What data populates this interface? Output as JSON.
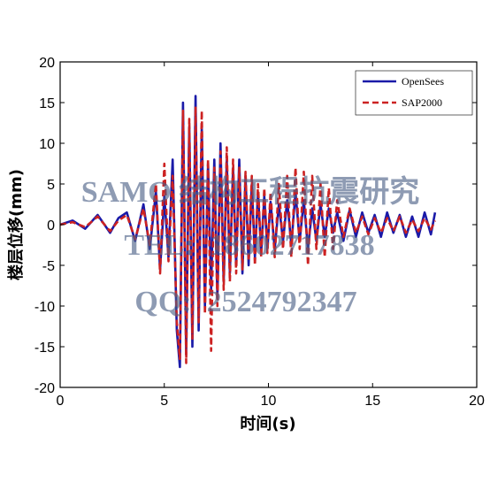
{
  "chart_data": {
    "type": "line",
    "title": "",
    "xlabel": "时间(s)",
    "ylabel": "楼层位移(mm)",
    "xlim": [
      0,
      20
    ],
    "ylim": [
      -20,
      20
    ],
    "xticks": [
      "0",
      "5",
      "10",
      "15",
      "20"
    ],
    "yticks": [
      "20",
      "15",
      "10",
      "5",
      "0",
      "-5",
      "-10",
      "-15",
      "-20"
    ],
    "legend_position": "top-right",
    "grid": false,
    "series": [
      {
        "name": "OpenSees",
        "color": "#1a1aa8",
        "style": "solid",
        "x": [
          0,
          0.6,
          1.2,
          1.8,
          2.4,
          2.8,
          3.2,
          3.6,
          4.0,
          4.3,
          4.6,
          4.8,
          5.0,
          5.2,
          5.4,
          5.6,
          5.75,
          5.9,
          6.05,
          6.2,
          6.35,
          6.5,
          6.65,
          6.8,
          6.95,
          7.1,
          7.25,
          7.4,
          7.55,
          7.7,
          7.85,
          8.0,
          8.15,
          8.3,
          8.45,
          8.6,
          8.75,
          8.9,
          9.05,
          9.2,
          9.35,
          9.5,
          9.65,
          9.8,
          9.95,
          10.1,
          10.3,
          10.5,
          10.7,
          10.9,
          11.1,
          11.3,
          11.5,
          11.7,
          11.9,
          12.1,
          12.3,
          12.5,
          12.7,
          12.9,
          13.1,
          13.3,
          13.6,
          13.9,
          14.2,
          14.5,
          14.8,
          15.1,
          15.4,
          15.7,
          16.0,
          16.3,
          16.6,
          16.9,
          17.2,
          17.5,
          17.8,
          18.0
        ],
        "y": [
          0,
          0.5,
          -0.5,
          1.2,
          -1.0,
          0.8,
          1.5,
          -2.0,
          2.5,
          -3.0,
          4.0,
          -5.5,
          3.5,
          -4.0,
          8.0,
          -13.0,
          -17.5,
          15.0,
          -16.0,
          12.0,
          -15.0,
          15.8,
          -13.0,
          12.0,
          -10.0,
          7.5,
          -8.0,
          8.0,
          -9.0,
          10.0,
          -7.0,
          8.0,
          -6.0,
          7.0,
          -5.0,
          8.0,
          -6.0,
          6.0,
          -5.0,
          5.0,
          -4.0,
          4.0,
          -3.5,
          3.5,
          -3.0,
          2.8,
          -3.0,
          2.5,
          -2.0,
          3.0,
          -2.5,
          4.0,
          -2.0,
          3.0,
          -3.0,
          2.0,
          -2.0,
          2.5,
          -1.5,
          2.0,
          -1.0,
          1.5,
          -2.0,
          1.8,
          -1.5,
          1.5,
          -1.0,
          1.2,
          -1.5,
          1.5,
          -1.0,
          1.2,
          -1.5,
          1.0,
          -1.5,
          1.5,
          -1.2,
          1.5
        ]
      },
      {
        "name": "SAP2000",
        "color": "#cc2222",
        "style": "dashed",
        "x": [
          0,
          0.6,
          1.2,
          1.8,
          2.4,
          2.8,
          3.2,
          3.6,
          4.0,
          4.3,
          4.6,
          4.8,
          5.0,
          5.2,
          5.4,
          5.6,
          5.75,
          5.9,
          6.05,
          6.2,
          6.35,
          6.5,
          6.65,
          6.8,
          6.95,
          7.1,
          7.25,
          7.4,
          7.55,
          7.7,
          7.85,
          8.0,
          8.15,
          8.3,
          8.45,
          8.6,
          8.75,
          8.9,
          9.05,
          9.2,
          9.35,
          9.5,
          9.65,
          9.8,
          9.95,
          10.1,
          10.3,
          10.5,
          10.7,
          10.9,
          11.1,
          11.3,
          11.5,
          11.7,
          11.9,
          12.1,
          12.3,
          12.5,
          12.7,
          12.9,
          13.1,
          13.3,
          13.6,
          13.9,
          14.2,
          14.5,
          14.8,
          15.1,
          15.4,
          15.7,
          16.0,
          16.3,
          16.6,
          16.9,
          17.2,
          17.5,
          17.8,
          18.0
        ],
        "y": [
          0,
          0.3,
          -0.3,
          1.0,
          -0.8,
          0.5,
          1.2,
          -1.8,
          2.0,
          -2.5,
          5.0,
          -6.0,
          7.5,
          -4.5,
          6.0,
          -12.0,
          -16.5,
          14.0,
          -17.0,
          13.0,
          -14.0,
          14.5,
          -12.0,
          14.0,
          -11.0,
          8.0,
          -15.5,
          7.0,
          -10.0,
          9.0,
          -8.0,
          9.5,
          -7.0,
          8.0,
          -6.0,
          7.0,
          -5.5,
          6.5,
          -4.5,
          6.0,
          -5.0,
          5.0,
          -4.0,
          4.5,
          -3.5,
          4.0,
          -4.0,
          5.0,
          -3.0,
          6.0,
          -4.0,
          7.0,
          -3.0,
          6.5,
          -5.0,
          6.0,
          -3.0,
          5.0,
          -4.0,
          4.5,
          -3.0,
          3.0,
          -1.5,
          2.0,
          -1.0,
          1.0,
          -1.2,
          0.8,
          -1.0,
          0.8,
          -0.8,
          1.0,
          -1.0,
          0.6,
          -0.8,
          0.8,
          -0.6,
          0.5
        ]
      }
    ]
  },
  "watermark": {
    "line1": "SAMO 结构工程抗震研究",
    "line2": "TEL:  18602717838",
    "line3": "QQ:  2524792347"
  }
}
